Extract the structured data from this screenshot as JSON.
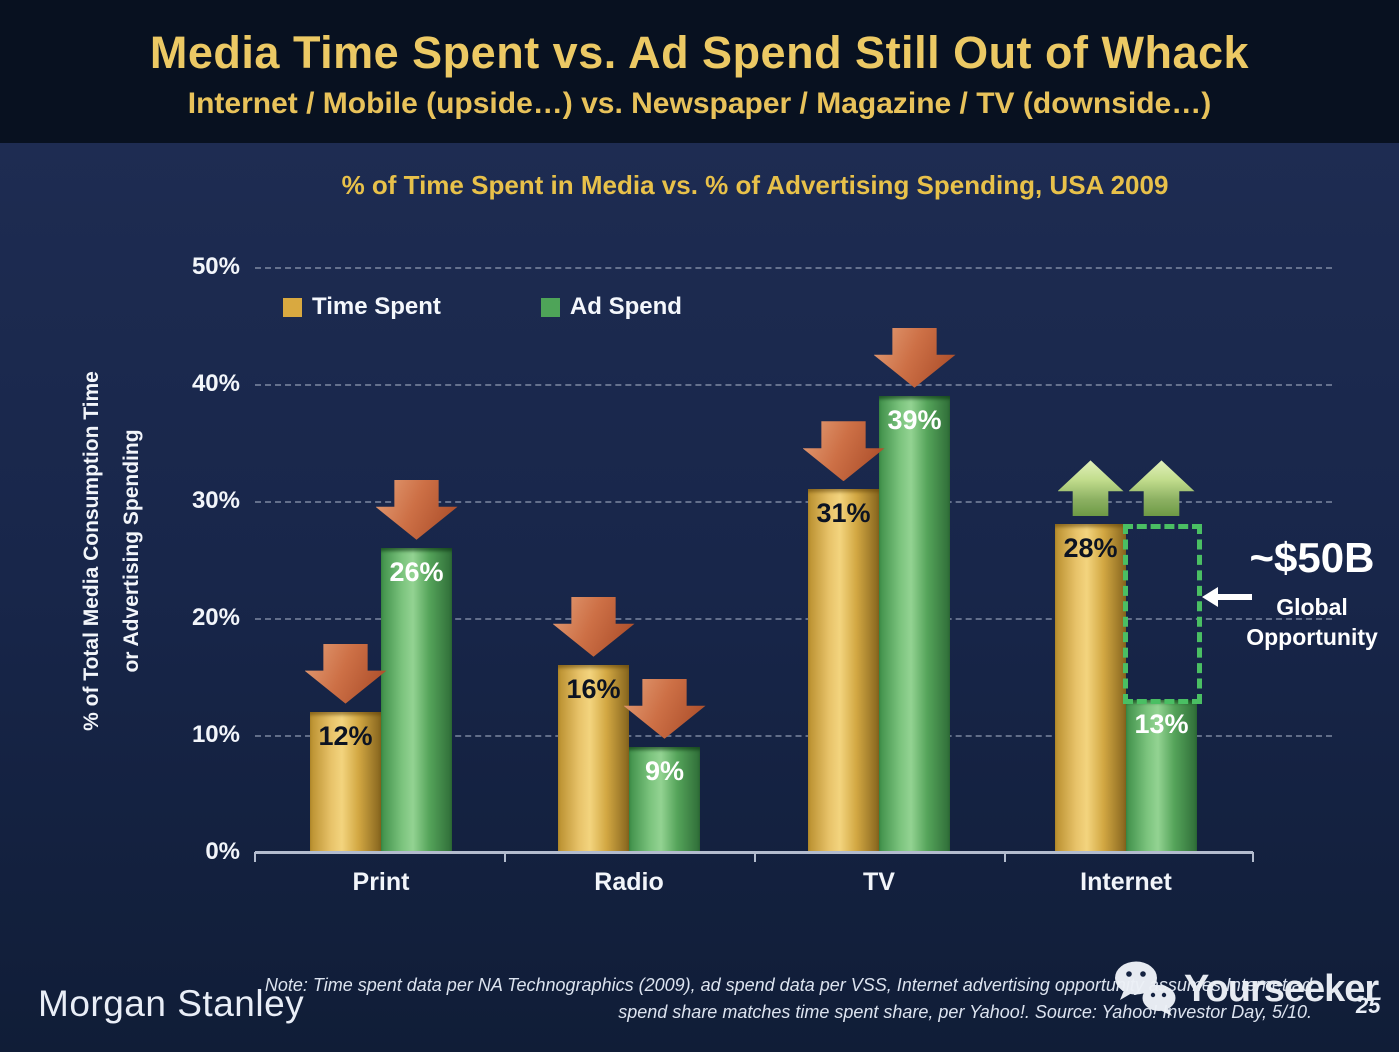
{
  "slide": {
    "title": "Media Time Spent vs. Ad Spend Still Out of Whack",
    "subtitle": "Internet / Mobile (upside…) vs. Newspaper / Magazine / TV (downside…)",
    "page_number": "25"
  },
  "footer": {
    "brand": "Morgan Stanley",
    "note_line1": "Note: Time spent data per NA Technographics (2009), ad spend data per VSS, Internet advertising opportunity assumes Internet ad",
    "note_line2": "spend share matches time spent share, per Yahoo!. Source: Yahoo! Investor Day, 5/10.",
    "watermark": "Yourseeker"
  },
  "chart_data": {
    "type": "bar",
    "title": "% of Time Spent in Media vs. % of Advertising Spending, USA 2009",
    "ylabel_line1": "% of Total Media Consumption Time",
    "ylabel_line2": "or Advertising Spending",
    "categories": [
      "Print",
      "Radio",
      "TV",
      "Internet"
    ],
    "series": [
      {
        "name": "Time Spent",
        "color": "#d9a940",
        "values": [
          12,
          16,
          31,
          28
        ]
      },
      {
        "name": "Ad Spend",
        "color": "#4ea458",
        "values": [
          26,
          9,
          39,
          13
        ]
      }
    ],
    "trend_arrows": [
      "down",
      "down",
      "down",
      "up"
    ],
    "y_tick_labels": [
      "50%",
      "40%",
      "30%",
      "20%",
      "10%",
      "0%"
    ],
    "y_tick_values": [
      50,
      40,
      30,
      20,
      10,
      0
    ],
    "ylim": [
      0,
      50
    ],
    "grid": "dotted-horizontal",
    "legend_position": "top-left",
    "annotation": {
      "value": "~$50B",
      "label_line1": "Global",
      "label_line2": "Opportunity",
      "target": "Internet ad spend gap between 13% and 28%"
    },
    "colors": {
      "time_spent_bar": "#d9a940",
      "ad_spend_bar": "#4ea458",
      "down_arrow": "#c66843",
      "up_arrow": "#a7c877",
      "opportunity_box": "#4abf63",
      "title_gold": "#e8c14a"
    }
  }
}
